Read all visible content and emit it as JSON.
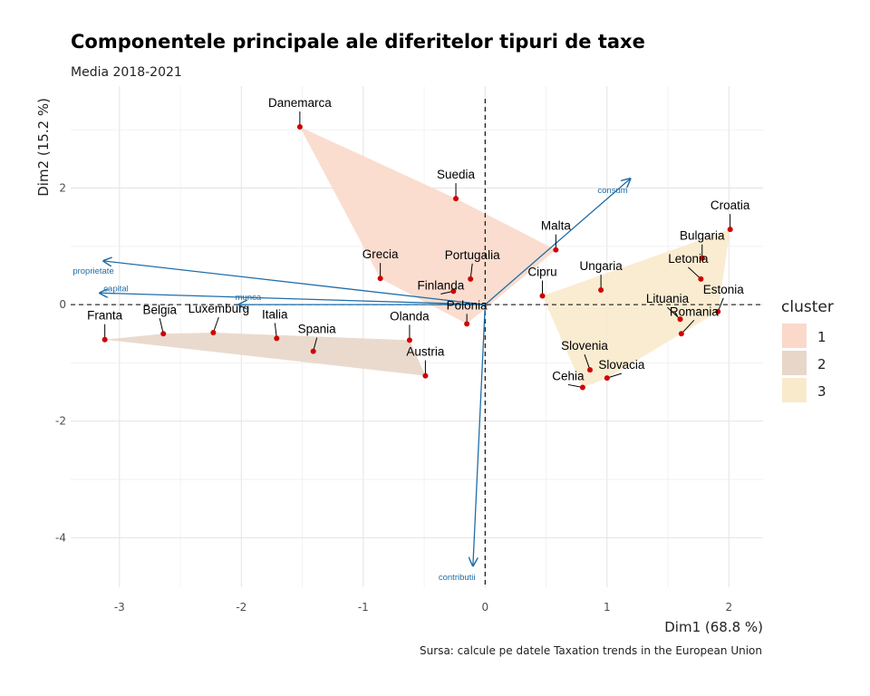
{
  "chart_data": {
    "type": "scatter",
    "title": "Componentele principale ale diferitelor tipuri de taxe",
    "subtitle": "Media 2018-2021",
    "xlabel": "Dim1 (68.8 %)",
    "ylabel": "Dim2 (15.2 %)",
    "caption": "Sursa: calcule pe datele Taxation trends in the European Union",
    "xlim": [
      -3.4,
      2.28
    ],
    "ylim": [
      -4.85,
      3.75
    ],
    "x_ticks": [
      -3,
      -2,
      -1,
      0,
      1,
      2
    ],
    "y_ticks": [
      -4,
      -2,
      0,
      2
    ],
    "grid": true,
    "legend": {
      "title": "cluster",
      "position": "right",
      "entries": [
        {
          "label": "1",
          "color": "#fad9ca"
        },
        {
          "label": "2",
          "color": "#e8d6c9"
        },
        {
          "label": "3",
          "color": "#faeacc"
        }
      ]
    },
    "points": [
      {
        "label": "Danemarca",
        "x": -1.52,
        "y": 3.05,
        "cluster": "1"
      },
      {
        "label": "Suedia",
        "x": -0.24,
        "y": 1.82,
        "cluster": "1"
      },
      {
        "label": "Grecia",
        "x": -0.86,
        "y": 0.45,
        "cluster": "1"
      },
      {
        "label": "Portugalia",
        "x": -0.12,
        "y": 0.44,
        "cluster": "1"
      },
      {
        "label": "Finlanda",
        "x": -0.26,
        "y": 0.23,
        "cluster": "1"
      },
      {
        "label": "Polonia",
        "x": -0.15,
        "y": -0.33,
        "cluster": "1"
      },
      {
        "label": "Malta",
        "x": 0.58,
        "y": 0.94,
        "cluster": "1"
      },
      {
        "label": "Franta",
        "x": -3.12,
        "y": -0.6,
        "cluster": "2"
      },
      {
        "label": "Belgia",
        "x": -2.64,
        "y": -0.5,
        "cluster": "2"
      },
      {
        "label": "Luxemburg",
        "x": -2.23,
        "y": -0.48,
        "cluster": "2"
      },
      {
        "label": "Italia",
        "x": -1.71,
        "y": -0.58,
        "cluster": "2"
      },
      {
        "label": "Spania",
        "x": -1.41,
        "y": -0.8,
        "cluster": "2"
      },
      {
        "label": "Olanda",
        "x": -0.62,
        "y": -0.61,
        "cluster": "2"
      },
      {
        "label": "Austria",
        "x": -0.49,
        "y": -1.22,
        "cluster": "2"
      },
      {
        "label": "Croatia",
        "x": 2.01,
        "y": 1.29,
        "cluster": "3"
      },
      {
        "label": "Bulgaria",
        "x": 1.78,
        "y": 0.8,
        "cluster": "3"
      },
      {
        "label": "Letonia",
        "x": 1.77,
        "y": 0.44,
        "cluster": "3"
      },
      {
        "label": "Estonia",
        "x": 1.91,
        "y": -0.12,
        "cluster": "3"
      },
      {
        "label": "Lituania",
        "x": 1.6,
        "y": -0.25,
        "cluster": "3"
      },
      {
        "label": "Romania",
        "x": 1.61,
        "y": -0.5,
        "cluster": "3"
      },
      {
        "label": "Ungaria",
        "x": 0.95,
        "y": 0.25,
        "cluster": "3"
      },
      {
        "label": "Cipru",
        "x": 0.47,
        "y": 0.15,
        "cluster": "3"
      },
      {
        "label": "Slovenia",
        "x": 0.86,
        "y": -1.12,
        "cluster": "3"
      },
      {
        "label": "Slovacia",
        "x": 1.0,
        "y": -1.26,
        "cluster": "3"
      },
      {
        "label": "Cehia",
        "x": 0.8,
        "y": -1.42,
        "cluster": "3"
      }
    ],
    "variables": [
      {
        "label": "consum",
        "x": 1.19,
        "y": 2.16
      },
      {
        "label": "proprietate",
        "x": -3.13,
        "y": 0.75
      },
      {
        "label": "capital",
        "x": -3.16,
        "y": 0.2
      },
      {
        "label": "munca",
        "x": -2.02,
        "y": 0.0
      },
      {
        "label": "contributii",
        "x": -0.1,
        "y": -4.48
      }
    ]
  }
}
